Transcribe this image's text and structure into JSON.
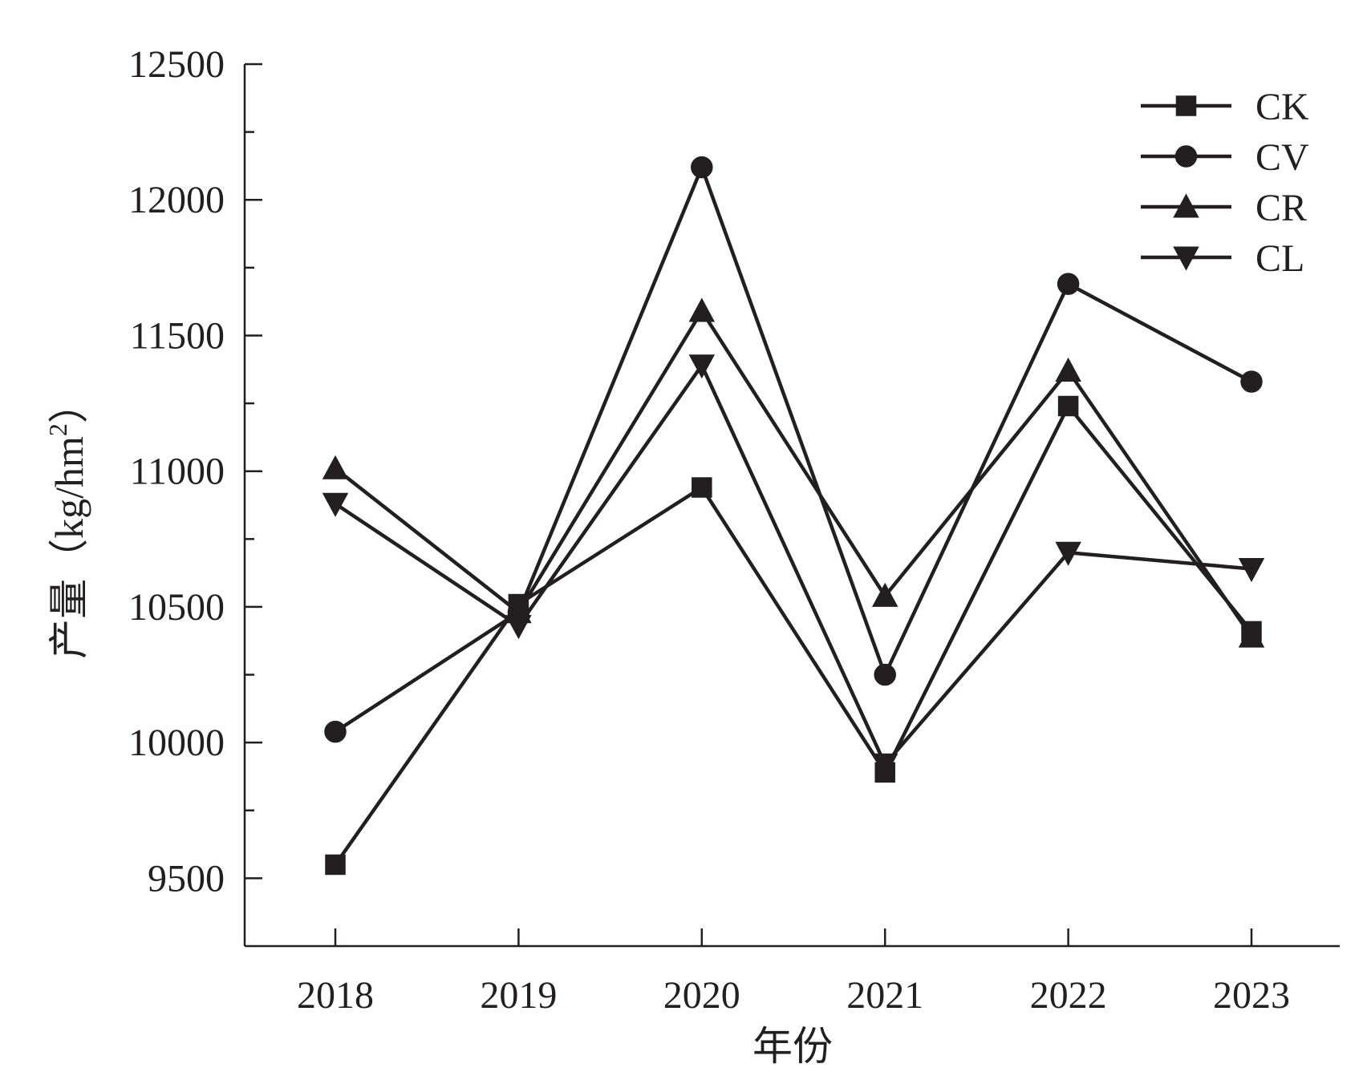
{
  "chart_data": {
    "type": "line",
    "title": "",
    "xlabel": "年份",
    "ylabel": "产量（kg/hm²）",
    "ylabel_parts": {
      "main": "产量（",
      "unit": "kg/hm",
      "sup": "2",
      "close": "）"
    },
    "x": [
      "2018",
      "2019",
      "2020",
      "2021",
      "2022",
      "2023"
    ],
    "ylim": [
      9250,
      12500
    ],
    "yticks": [
      9500,
      10000,
      10500,
      11000,
      11500,
      12000,
      12500
    ],
    "yticks_minor": [
      9750,
      10250,
      10750,
      11250,
      11750,
      12250
    ],
    "grid": false,
    "legend_position": "top-right",
    "series": [
      {
        "name": "CK",
        "marker": "square",
        "values": [
          9550,
          10510,
          10940,
          9890,
          11240,
          10410
        ]
      },
      {
        "name": "CV",
        "marker": "circle",
        "values": [
          10040,
          10480,
          12120,
          10250,
          11690,
          11330
        ]
      },
      {
        "name": "CR",
        "marker": "triangle-up",
        "values": [
          11010,
          10480,
          11590,
          10540,
          11370,
          10390
        ]
      },
      {
        "name": "CL",
        "marker": "triangle-down",
        "values": [
          10880,
          10430,
          11390,
          9920,
          10700,
          10640
        ]
      }
    ]
  }
}
